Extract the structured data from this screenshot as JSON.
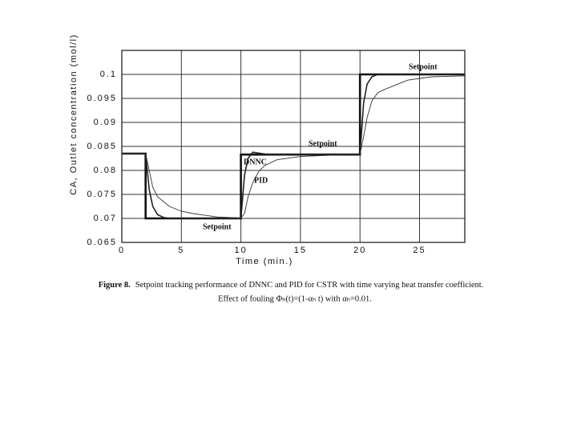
{
  "chart_data": {
    "type": "line",
    "x_label": "Time (min.)",
    "y_label": "CA, Outlet concentration (mol/l)",
    "figure_label": "Figure 8.",
    "caption": [
      "Setpoint tracking performance of DNNC and PID for CSTR with time varying heat transfer coefficient.",
      "Effect of fouling Φₕ(t)=(1-αₕ t) with αₕ=0.01."
    ],
    "annotations": [
      "Setpoint",
      "Setpoint"
    ],
    "x": [
      0,
      2,
      2,
      2.3,
      2.6,
      3,
      3.5,
      4,
      5,
      6,
      8,
      10,
      10,
      10.3,
      10.6,
      11,
      11.5,
      12,
      13,
      15,
      18,
      20,
      20,
      20.3,
      20.6,
      21,
      21.5,
      22,
      23,
      24,
      26,
      28.8
    ],
    "series": [
      {
        "name": "Setpoint",
        "color": "#111111",
        "values": [
          0.0835,
          0.0835,
          0.07,
          0.07,
          0.07,
          0.07,
          0.07,
          0.07,
          0.07,
          0.07,
          0.07,
          0.07,
          0.0833,
          0.0833,
          0.0833,
          0.0833,
          0.0833,
          0.0833,
          0.0833,
          0.0833,
          0.0833,
          0.0833,
          0.1,
          0.1,
          0.1,
          0.1,
          0.1,
          0.1,
          0.1,
          0.1,
          0.1,
          0.1
        ]
      },
      {
        "name": "DNNC",
        "color": "#222222",
        "values": [
          0.0835,
          0.0835,
          0.0835,
          0.076,
          0.0725,
          0.0708,
          0.0702,
          0.07,
          0.07,
          0.07,
          0.07,
          0.07,
          0.07,
          0.079,
          0.0825,
          0.0838,
          0.0836,
          0.0834,
          0.0833,
          0.0833,
          0.0833,
          0.0833,
          0.0833,
          0.094,
          0.098,
          0.0995,
          0.1,
          0.1,
          0.1,
          0.1,
          0.1,
          0.1
        ]
      },
      {
        "name": "PID",
        "color": "#333333",
        "values": [
          0.0835,
          0.0835,
          0.0835,
          0.08,
          0.0765,
          0.0745,
          0.0735,
          0.0725,
          0.0715,
          0.071,
          0.0703,
          0.0701,
          0.0701,
          0.071,
          0.0745,
          0.0775,
          0.0798,
          0.081,
          0.0822,
          0.0829,
          0.0832,
          0.0833,
          0.0833,
          0.087,
          0.091,
          0.0945,
          0.0962,
          0.0968,
          0.0978,
          0.0988,
          0.0995,
          0.0997
        ]
      }
    ],
    "xlim": [
      0,
      28.8
    ],
    "xticks": [
      0,
      5,
      10,
      15,
      20,
      25
    ],
    "ylim": [
      0.065,
      0.105
    ],
    "yticks": [
      0.065,
      0.07,
      0.075,
      0.08,
      0.085,
      0.09,
      0.095,
      0.1
    ],
    "grid": true
  }
}
